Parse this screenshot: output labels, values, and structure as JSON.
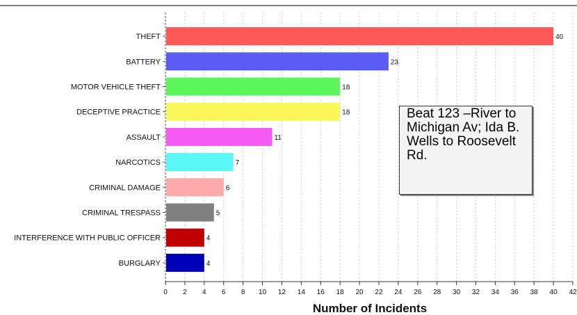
{
  "chart_data": {
    "type": "bar",
    "orientation": "horizontal",
    "categories": [
      "THEFT",
      "BATTERY",
      "MOTOR VEHICLE THEFT",
      "DECEPTIVE PRACTICE",
      "ASSAULT",
      "NARCOTICS",
      "CRIMINAL DAMAGE",
      "CRIMINAL TRESPASS",
      "INTERFERENCE WITH PUBLIC OFFICER",
      "BURGLARY"
    ],
    "values": [
      40,
      23,
      18,
      18,
      11,
      7,
      6,
      5,
      4,
      4
    ],
    "colors": [
      "#ff5757",
      "#5b5bf5",
      "#5cf55c",
      "#f8f85a",
      "#f55af5",
      "#5cf8f8",
      "#ffaaaa",
      "#808080",
      "#c00000",
      "#0000b8"
    ],
    "xlabel": "Number of Incidents",
    "xlim": [
      0,
      42
    ],
    "xticks": [
      0,
      2,
      4,
      6,
      8,
      10,
      12,
      14,
      16,
      18,
      20,
      22,
      24,
      26,
      28,
      30,
      32,
      34,
      36,
      38,
      40,
      42
    ],
    "grid": "vertical dashed",
    "annotation": "Beat 123 –River to Michigan Av; Ida B. Wells to Roosevelt Rd."
  }
}
